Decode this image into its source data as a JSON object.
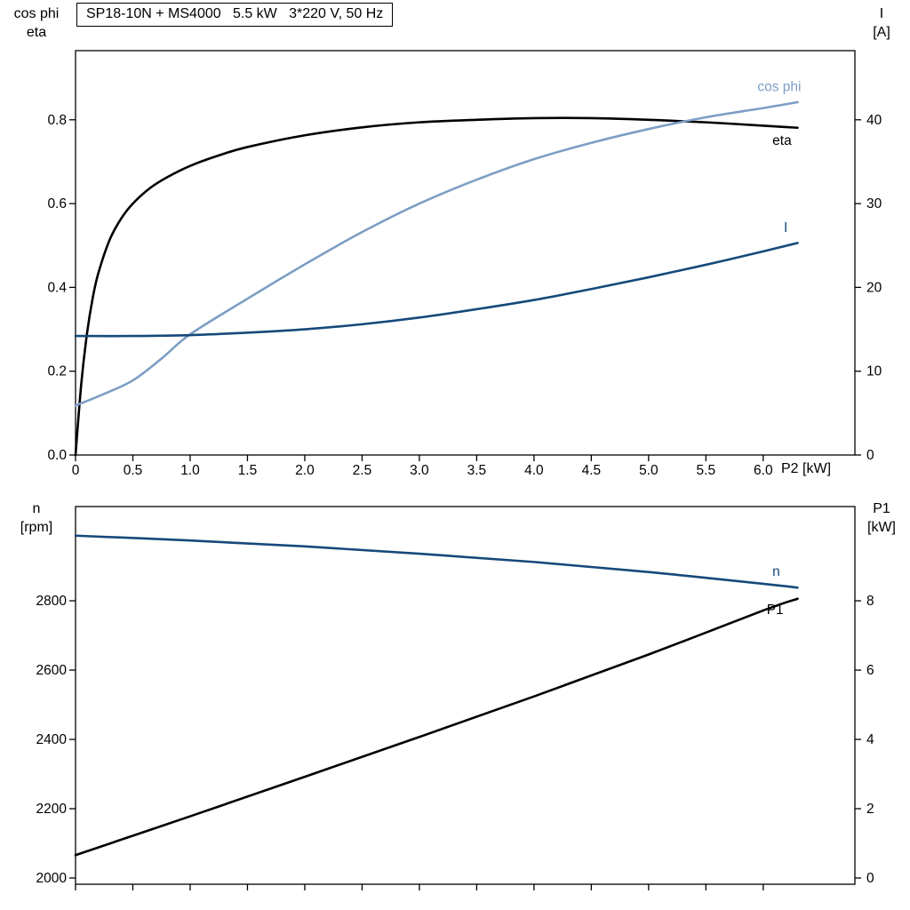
{
  "colors": {
    "black": "#000000",
    "light_blue": "#7d9ec4",
    "dark_blue": "#16497b",
    "axis": "#000000",
    "background": "#ffffff"
  },
  "chart_data": [
    {
      "type": "line",
      "title": "SP18-10N + MS4000   5.5 kW   3*220 V, 50 Hz",
      "left_axis_title": [
        "cos phi",
        "eta"
      ],
      "right_axis_title": [
        "I",
        "[A]"
      ],
      "xlabel": "P2 [kW]",
      "xlim": [
        0,
        6.8
      ],
      "xticks": [
        "0",
        "0.5",
        "1.0",
        "1.5",
        "2.0",
        "2.5",
        "3.0",
        "3.5",
        "4.0",
        "4.5",
        "5.0",
        "5.5",
        "6.0"
      ],
      "show_xtick_labels": true,
      "ylim_left": [
        0,
        0.965
      ],
      "yticks_left": [
        "0.0",
        "0.2",
        "0.4",
        "0.6",
        "0.8"
      ],
      "ylim_right": [
        0,
        48.25
      ],
      "yticks_right": [
        "0",
        "10",
        "20",
        "30",
        "40"
      ],
      "grid": false,
      "legend": "inline-curve-labels",
      "series": [
        {
          "name": "eta",
          "axis": "left",
          "color": "#000000",
          "x": [
            0,
            0.05,
            0.1,
            0.15,
            0.2,
            0.3,
            0.4,
            0.5,
            0.65,
            0.8,
            1.0,
            1.25,
            1.5,
            2.0,
            2.5,
            3.0,
            3.5,
            4.0,
            4.5,
            5.0,
            5.5,
            6.0,
            6.3
          ],
          "y": [
            0,
            0.17,
            0.29,
            0.375,
            0.435,
            0.515,
            0.565,
            0.6,
            0.637,
            0.663,
            0.69,
            0.715,
            0.735,
            0.763,
            0.782,
            0.794,
            0.8,
            0.804,
            0.804,
            0.8,
            0.794,
            0.786,
            0.781
          ],
          "label": {
            "text": "eta",
            "x": 6.08,
            "y": 0.74
          }
        },
        {
          "name": "cos phi",
          "axis": "left",
          "color": "#7d9ec4",
          "x": [
            0,
            0.25,
            0.5,
            0.75,
            1.0,
            1.5,
            2.0,
            2.5,
            3.0,
            3.5,
            4.0,
            4.5,
            5.0,
            5.5,
            6.0,
            6.3
          ],
          "y": [
            0.118,
            0.146,
            0.178,
            0.23,
            0.288,
            0.373,
            0.455,
            0.532,
            0.6,
            0.657,
            0.706,
            0.745,
            0.778,
            0.806,
            0.828,
            0.842
          ],
          "label": {
            "text": "cos phi",
            "x": 5.95,
            "y": 0.868
          }
        },
        {
          "name": "I",
          "axis": "right",
          "color": "#16497b",
          "x": [
            0,
            0.5,
            1.0,
            1.5,
            2.0,
            2.5,
            3.0,
            3.5,
            4.0,
            4.5,
            5.0,
            5.5,
            6.0,
            6.3
          ],
          "y": [
            14.2,
            14.2,
            14.3,
            14.6,
            15.0,
            15.6,
            16.4,
            17.4,
            18.5,
            19.8,
            21.2,
            22.7,
            24.3,
            25.3
          ],
          "label": {
            "text": "I",
            "x": 6.18,
            "y": 26.6
          }
        }
      ]
    },
    {
      "type": "line",
      "title": "",
      "left_axis_title": [
        "n",
        "[rpm]"
      ],
      "right_axis_title": [
        "P1",
        "[kW]"
      ],
      "xlabel": "",
      "xlim": [
        0,
        6.8
      ],
      "xticks": [
        "0",
        "0.5",
        "1.0",
        "1.5",
        "2.0",
        "2.5",
        "3.0",
        "3.5",
        "4.0",
        "4.5",
        "5.0",
        "5.5",
        "6.0"
      ],
      "show_xtick_labels": false,
      "ylim_left": [
        1982,
        3072
      ],
      "yticks_left": [
        "2000",
        "2200",
        "2400",
        "2600",
        "2800"
      ],
      "ylim_right": [
        -0.18,
        10.72
      ],
      "yticks_right": [
        "0",
        "2",
        "4",
        "6",
        "8"
      ],
      "grid": false,
      "legend": "inline-curve-labels",
      "series": [
        {
          "name": "n",
          "axis": "left",
          "color": "#16497b",
          "x": [
            0,
            1,
            2,
            3,
            4,
            5,
            6,
            6.3
          ],
          "y": [
            2988,
            2974,
            2957,
            2936,
            2912,
            2883,
            2849,
            2838
          ],
          "label": {
            "text": "n",
            "x": 6.08,
            "y": 2872
          }
        },
        {
          "name": "P1",
          "axis": "right",
          "color": "#000000",
          "x": [
            0,
            1,
            2,
            3,
            4,
            5,
            6,
            6.3
          ],
          "y": [
            0.66,
            1.78,
            2.92,
            4.07,
            5.24,
            6.45,
            7.72,
            8.06
          ],
          "label": {
            "text": "P1",
            "x": 6.03,
            "y": 7.62
          }
        }
      ]
    }
  ]
}
